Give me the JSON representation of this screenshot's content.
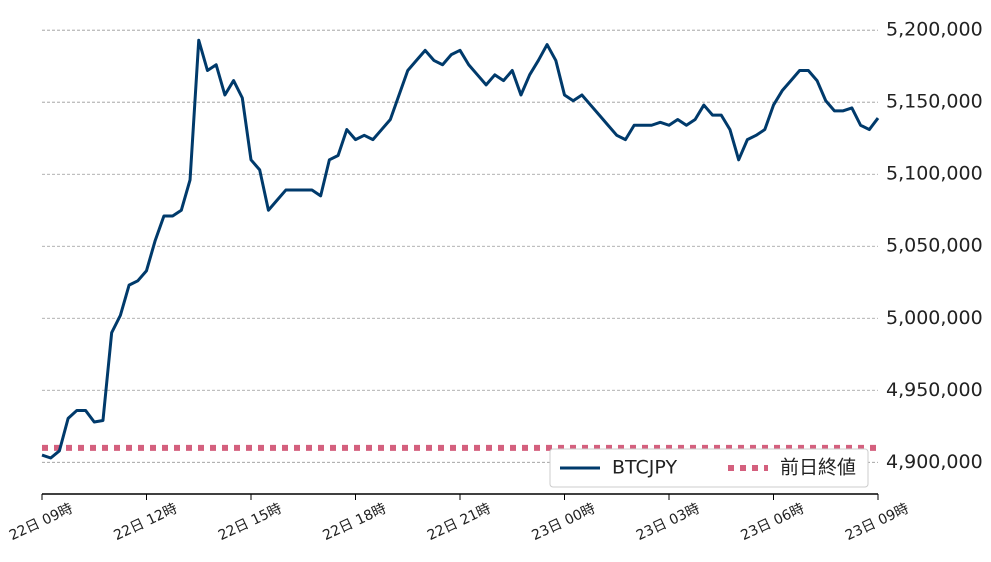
{
  "chart_data": {
    "type": "line",
    "x": [
      0,
      0.25,
      0.5,
      0.75,
      1,
      1.25,
      1.5,
      1.75,
      2,
      2.25,
      2.5,
      2.75,
      3,
      3.25,
      3.5,
      3.75,
      4,
      4.25,
      4.5,
      4.75,
      5,
      5.25,
      5.5,
      5.75,
      6,
      6.25,
      6.5,
      6.75,
      7,
      7.25,
      7.5,
      7.75,
      8,
      8.25,
      8.5,
      8.75,
      9,
      9.25,
      9.5,
      9.75,
      10,
      10.25,
      10.5,
      10.75,
      11,
      11.25,
      11.5,
      11.75,
      12,
      12.25,
      12.5,
      12.75,
      13,
      13.25,
      13.5,
      13.75,
      14,
      14.25,
      14.5,
      14.75,
      15,
      15.25,
      15.5,
      15.75,
      16,
      16.25,
      16.5,
      16.75,
      17,
      17.25,
      17.5,
      17.75,
      18,
      18.25,
      18.5,
      18.75,
      19,
      19.25,
      19.5,
      19.75,
      20,
      20.25,
      20.5,
      20.75,
      21,
      21.25,
      21.5,
      21.75,
      22,
      22.25,
      22.5,
      22.75,
      23,
      23.25,
      23.5,
      23.75,
      24
    ],
    "series": [
      {
        "name": "BTCJPY",
        "color": "#003a6b",
        "values": [
          4905000,
          4903000,
          4908000,
          4930500,
          4936000,
          4936000,
          4928000,
          4929000,
          4990000,
          5002000,
          5023000,
          5026000,
          5033000,
          5054000,
          5071000,
          5071000,
          5075000,
          5096000,
          5193000,
          5172000,
          5176000,
          5155000,
          5165000,
          5153000,
          5110000,
          5103000,
          5075000,
          5082000,
          5089000,
          5089000,
          5089000,
          5089000,
          5085000,
          5110000,
          5113000,
          5131000,
          5124000,
          5127000,
          5124000,
          5131000,
          5138000,
          5155000,
          5172000,
          5179000,
          5186000,
          5179000,
          5176000,
          5183000,
          5186000,
          5176000,
          5169000,
          5162000,
          5169000,
          5165000,
          5172000,
          5155000,
          5169000,
          5179000,
          5190000,
          5179000,
          5155000,
          5151000,
          5155000,
          5148000,
          5141000,
          5134000,
          5127000,
          5124000,
          5134000,
          5134000,
          5134000,
          5136000,
          5134000,
          5138000,
          5134000,
          5138000,
          5148000,
          5141000,
          5141000,
          5131000,
          5110000,
          5124000,
          5127000,
          5131000,
          5148000,
          5158000,
          5165000,
          5172000,
          5172000,
          5165000,
          5151000,
          5144000,
          5144000,
          5146000,
          5134000,
          5131000,
          5139000
        ]
      }
    ],
    "reference_line": {
      "name": "前日終値",
      "value": 4910000,
      "color": "#d4607e"
    },
    "xlim": [
      0,
      24
    ],
    "xticks": [
      {
        "value": 0,
        "label": "22日 09時"
      },
      {
        "value": 3,
        "label": "22日 12時"
      },
      {
        "value": 6,
        "label": "22日 15時"
      },
      {
        "value": 9,
        "label": "22日 18時"
      },
      {
        "value": 12,
        "label": "22日 21時"
      },
      {
        "value": 15,
        "label": "23日 00時"
      },
      {
        "value": 18,
        "label": "23日 03時"
      },
      {
        "value": 21,
        "label": "23日 06時"
      },
      {
        "value": 24,
        "label": "23日 09時"
      }
    ],
    "ylim": [
      4878000,
      5214000
    ],
    "yticks": [
      {
        "value": 4900000,
        "label": "4,900,000"
      },
      {
        "value": 4950000,
        "label": "4,950,000"
      },
      {
        "value": 5000000,
        "label": "5,000,000"
      },
      {
        "value": 5050000,
        "label": "5,050,000"
      },
      {
        "value": 5100000,
        "label": "5,100,000"
      },
      {
        "value": 5150000,
        "label": "5,150,000"
      },
      {
        "value": 5200000,
        "label": "5,200,000"
      }
    ],
    "grid": true,
    "legend": "lower right"
  }
}
